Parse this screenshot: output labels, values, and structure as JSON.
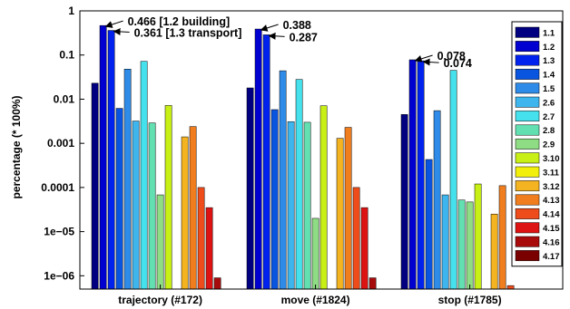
{
  "chart_data": {
    "type": "bar",
    "yscale": "log",
    "ylim": [
      5e-07,
      1
    ],
    "ylabel": "percentage (* 100%)",
    "xlabel": "",
    "title": "",
    "grid": false,
    "legend_position": "right",
    "y_ticks": [
      {
        "value": 1,
        "label": "1"
      },
      {
        "value": 0.1,
        "label": "0.1"
      },
      {
        "value": 0.01,
        "label": "0.01"
      },
      {
        "value": 0.001,
        "label": "0.001"
      },
      {
        "value": 0.0001,
        "label": "0.0001"
      },
      {
        "value": 1e-05,
        "label": "1e−05"
      },
      {
        "value": 1e-06,
        "label": "1e−06"
      }
    ],
    "categories": [
      "trajectory (#172)",
      "move (#1824)",
      "stop (#1785)"
    ],
    "series": [
      {
        "name": "1.1",
        "color": "#000080",
        "values": [
          0.023,
          0.018,
          0.0045
        ]
      },
      {
        "name": "1.2",
        "color": "#0000d0",
        "values": [
          0.466,
          0.388,
          0.078
        ]
      },
      {
        "name": "1.3",
        "color": "#0022ee",
        "values": [
          0.361,
          0.287,
          0.074
        ]
      },
      {
        "name": "1.4",
        "color": "#0a55e0",
        "values": [
          0.0062,
          0.0058,
          0.00043
        ]
      },
      {
        "name": "1.5",
        "color": "#2f8be8",
        "values": [
          0.048,
          0.044,
          0.0055
        ]
      },
      {
        "name": "2.6",
        "color": "#3fb5ee",
        "values": [
          0.0032,
          0.0031,
          6.8e-05
        ]
      },
      {
        "name": "2.7",
        "color": "#45e1ec",
        "values": [
          0.072,
          0.028,
          0.045
        ]
      },
      {
        "name": "2.8",
        "color": "#63e0b1",
        "values": [
          0.0029,
          0.003,
          5.2e-05
        ]
      },
      {
        "name": "2.9",
        "color": "#8edc83",
        "values": [
          6.8e-05,
          2e-05,
          4.7e-05
        ]
      },
      {
        "name": "3.10",
        "color": "#c8f016",
        "values": [
          0.0072,
          0.0071,
          0.00012
        ]
      },
      {
        "name": "3.11",
        "color": "#f2f00a",
        "values": [
          null,
          null,
          null
        ]
      },
      {
        "name": "3.12",
        "color": "#f4b320",
        "values": [
          0.0014,
          0.0013,
          2.5e-05
        ]
      },
      {
        "name": "4.13",
        "color": "#f07d1e",
        "values": [
          0.0024,
          0.0023,
          0.00011
        ]
      },
      {
        "name": "4.14",
        "color": "#ee4c1a",
        "values": [
          0.0001,
          0.0001,
          6e-07
        ]
      },
      {
        "name": "4.15",
        "color": "#dd1212",
        "values": [
          3.5e-05,
          3.5e-05,
          null
        ]
      },
      {
        "name": "4.16",
        "color": "#a80b0b",
        "values": [
          9e-07,
          9e-07,
          null
        ]
      },
      {
        "name": "4.17",
        "color": "#7a0000",
        "values": [
          null,
          null,
          null
        ]
      }
    ],
    "annotations": [
      {
        "text": "0.466 [1.2 building]",
        "category": 0,
        "series": 1
      },
      {
        "text": "0.361 [1.3 transport]",
        "category": 0,
        "series": 2
      },
      {
        "text": "0.388",
        "category": 1,
        "series": 1
      },
      {
        "text": "0.287",
        "category": 1,
        "series": 2
      },
      {
        "text": "0.078",
        "category": 2,
        "series": 1
      },
      {
        "text": "0.074",
        "category": 2,
        "series": 2
      }
    ]
  }
}
